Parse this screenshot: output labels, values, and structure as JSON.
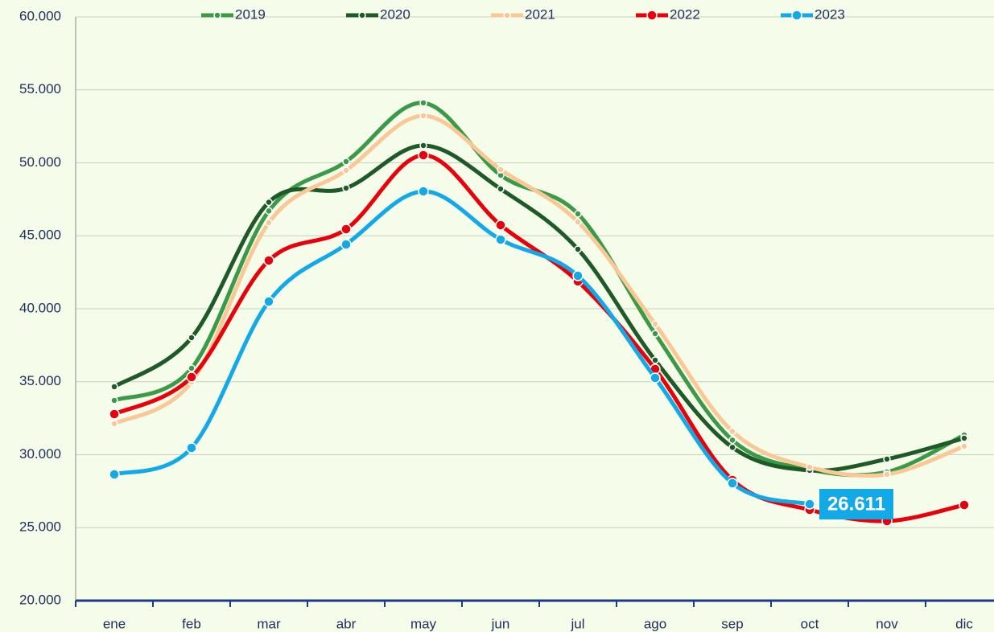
{
  "chart_data": {
    "type": "line",
    "categories": [
      "ene",
      "feb",
      "mar",
      "abr",
      "may",
      "jun",
      "jul",
      "ago",
      "sep",
      "oct",
      "nov",
      "dic"
    ],
    "series": [
      {
        "name": "2019",
        "color": "#3a9a48",
        "values": [
          33720,
          35924,
          46700,
          50085,
          54107,
          49148,
          46503,
          38293,
          31000,
          28981,
          28816,
          31351
        ]
      },
      {
        "name": "2020",
        "color": "#1e5a28",
        "values": [
          34657,
          38018,
          47300,
          48266,
          51187,
          48211,
          44079,
          36475,
          30500,
          28926,
          29698,
          31130
        ]
      },
      {
        "name": "2021",
        "color": "#f9c896",
        "values": [
          32122,
          34987,
          45900,
          49479,
          53225,
          49534,
          45952,
          38954,
          31600,
          29147,
          28651,
          30579
        ]
      },
      {
        "name": "2022",
        "color": "#e8000b",
        "values": [
          32783,
          35318,
          43308,
          45456,
          50525,
          45732,
          41875,
          35869,
          28265,
          26226,
          25455,
          26557
        ]
      },
      {
        "name": "2023",
        "color": "#12a9e6",
        "values": [
          28651,
          30469,
          40497,
          44409,
          48046,
          44740,
          42260,
          35263,
          28045,
          26611,
          null,
          null
        ],
        "value_labels": [
          null,
          null,
          null,
          null,
          null,
          null,
          null,
          null,
          null,
          "26.611",
          null,
          null
        ]
      }
    ],
    "ylim": [
      20000,
      60000
    ],
    "yticks": [
      {
        "value": 20000,
        "label": "20.000"
      },
      {
        "value": 25000,
        "label": "25.000"
      },
      {
        "value": 30000,
        "label": "30.000"
      },
      {
        "value": 35000,
        "label": "35.000"
      },
      {
        "value": 40000,
        "label": "40.000"
      },
      {
        "value": 45000,
        "label": "45.000"
      },
      {
        "value": 50000,
        "label": "50.000"
      },
      {
        "value": 55000,
        "label": "55.000"
      },
      {
        "value": 60000,
        "label": "60.000"
      }
    ],
    "grid": true,
    "legend": "top"
  }
}
